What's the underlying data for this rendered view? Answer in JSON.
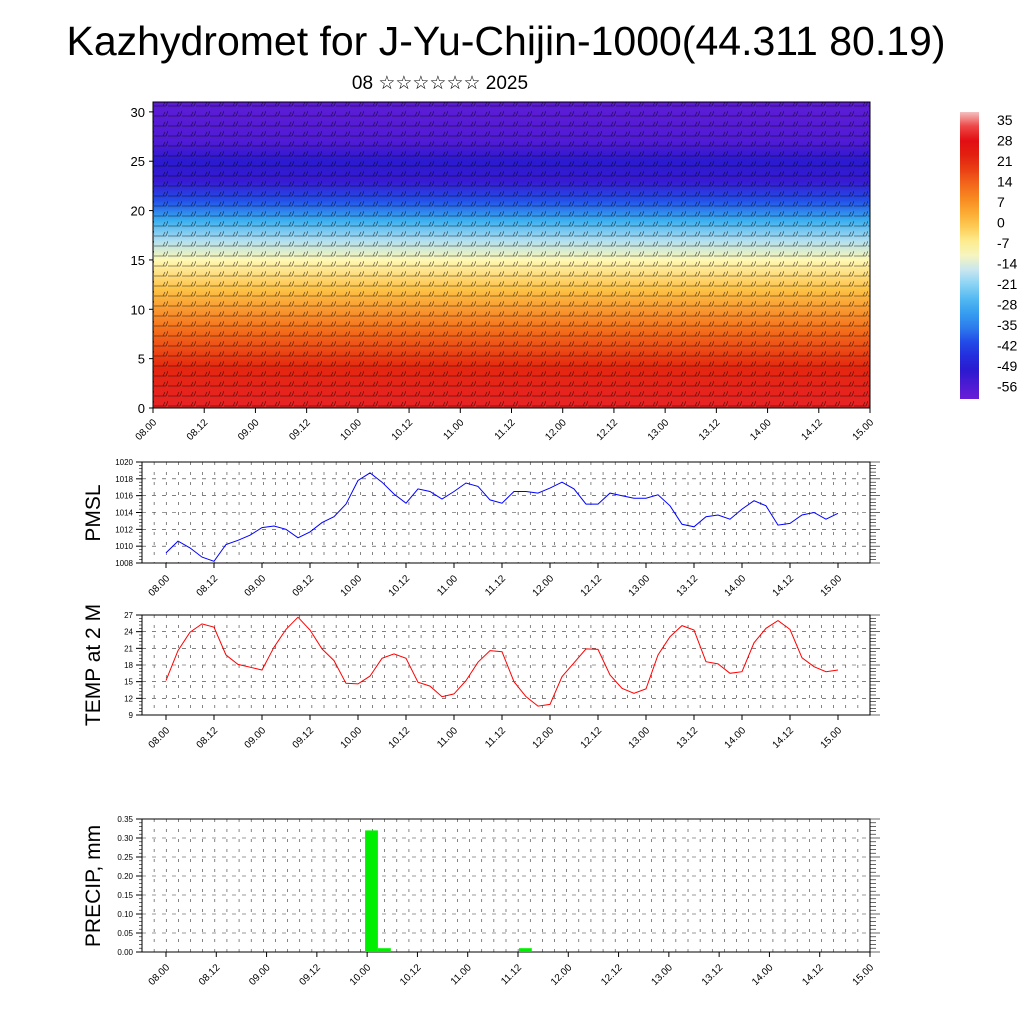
{
  "header": {
    "title": "Kazhydromet for J-Yu-Chijin-1000(44.311 80.19)",
    "date": "08 ☆☆☆☆☆☆ 2025"
  },
  "colors": {
    "pmsl_line": "#0000ff",
    "temp_line": "#ff0000",
    "precip_bar": "#00ee00",
    "background": "#ffffff"
  },
  "chart_data": [
    {
      "type": "heatmap",
      "title": "",
      "xlabel": "",
      "ylabel": "",
      "x_tick_labels": [
        "08.00",
        "08.12",
        "09.00",
        "09.12",
        "10.00",
        "10.12",
        "11.00",
        "11.12",
        "12.00",
        "12.12",
        "13.00",
        "13.12",
        "14.00",
        "14.12",
        "15.00"
      ],
      "y_ticks": [
        0,
        5,
        10,
        15,
        20,
        25,
        30
      ],
      "ylim": [
        0,
        31
      ],
      "overlay": "wind barbs",
      "temperature_profile": {
        "heights": [
          0,
          4,
          8,
          12,
          15,
          17,
          19,
          21,
          23,
          25,
          27,
          31
        ],
        "values": [
          30,
          22,
          12,
          0,
          -10,
          -18,
          -28,
          -40,
          -52,
          -50,
          -56,
          -58
        ]
      },
      "colorbar": {
        "labels": [
          "35",
          "28",
          "21",
          "14",
          "7",
          "0",
          "-7",
          "-14",
          "-21",
          "-28",
          "-35",
          "-42",
          "-49",
          "-56"
        ],
        "range": [
          -60,
          38
        ]
      }
    },
    {
      "type": "line",
      "ylabel": "PMSL",
      "x_tick_labels": [
        "08.00",
        "08.12",
        "09.00",
        "09.12",
        "10.00",
        "10.12",
        "11.00",
        "11.12",
        "12.00",
        "12.12",
        "13.00",
        "13.12",
        "14.00",
        "14.12",
        "15.00"
      ],
      "y_ticks": [
        "1008",
        "1010",
        "1012",
        "1014",
        "1016",
        "1018",
        "1020"
      ],
      "ylim": [
        1008,
        1020
      ],
      "grid": true,
      "series": [
        {
          "values": [
            1009.2,
            1010.6,
            1009.8,
            1008.7,
            1008.2,
            1010.2,
            1010.7,
            1011.3,
            1012.2,
            1012.4,
            1012.0,
            1011.0,
            1011.7,
            1012.8,
            1013.5,
            1015.0,
            1017.8,
            1018.7,
            1017.6,
            1016.2,
            1015.1,
            1016.8,
            1016.5,
            1015.6,
            1016.5,
            1017.5,
            1017.1,
            1015.5,
            1015.1,
            1016.5,
            1016.5,
            1016.3,
            1016.9,
            1017.6,
            1016.8,
            1015.0,
            1015.0,
            1016.3,
            1016.0,
            1015.7,
            1015.7,
            1016.1,
            1014.8,
            1012.6,
            1012.3,
            1013.5,
            1013.7,
            1013.2,
            1014.4,
            1015.4,
            1014.8,
            1012.5,
            1012.7,
            1013.7,
            1014.0,
            1013.2,
            1013.9
          ]
        }
      ]
    },
    {
      "type": "line",
      "ylabel": "TEMP at 2 M",
      "x_tick_labels": [
        "08.00",
        "08.12",
        "09.00",
        "09.12",
        "10.00",
        "10.12",
        "11.00",
        "11.12",
        "12.00",
        "12.12",
        "13.00",
        "13.12",
        "14.00",
        "14.12",
        "15.00"
      ],
      "y_ticks": [
        "9",
        "12",
        "15",
        "18",
        "21",
        "24",
        "27"
      ],
      "ylim": [
        9,
        27
      ],
      "grid": true,
      "series": [
        {
          "values": [
            15.2,
            20.6,
            23.9,
            25.4,
            24.8,
            19.8,
            18.1,
            17.6,
            17.1,
            21.2,
            24.4,
            26.6,
            24.3,
            20.9,
            18.8,
            14.7,
            14.6,
            16.0,
            19.2,
            20.0,
            19.2,
            14.9,
            14.2,
            12.3,
            12.8,
            15.2,
            18.5,
            20.6,
            20.4,
            15.0,
            12.3,
            10.6,
            10.9,
            15.9,
            18.4,
            20.9,
            20.8,
            16.2,
            13.8,
            12.9,
            13.7,
            19.8,
            23.1,
            25.1,
            24.3,
            18.6,
            18.2,
            16.5,
            16.8,
            22.0,
            24.6,
            26.0,
            24.4,
            19.3,
            17.7,
            16.8,
            17.1
          ]
        }
      ]
    },
    {
      "type": "bar",
      "ylabel": "PRECIP, mm",
      "x_tick_labels": [
        "08.00",
        "08.12",
        "09.00",
        "09.12",
        "10.00",
        "10.12",
        "11.00",
        "11.12",
        "12.00",
        "12.12",
        "13.00",
        "13.12",
        "14.00",
        "14.12",
        "15.00"
      ],
      "y_ticks": [
        "0.00",
        "0.05",
        "0.10",
        "0.15",
        "0.20",
        "0.25",
        "0.30",
        "0.35"
      ],
      "ylim": [
        0,
        0.35
      ],
      "grid": true,
      "values": [
        0,
        0,
        0,
        0,
        0,
        0,
        0,
        0,
        0,
        0,
        0,
        0,
        0,
        0,
        0,
        0,
        0.32,
        0.01,
        0,
        0,
        0,
        0,
        0,
        0,
        0,
        0,
        0,
        0,
        0.01,
        0,
        0,
        0,
        0,
        0,
        0,
        0,
        0,
        0,
        0,
        0,
        0,
        0,
        0,
        0,
        0,
        0,
        0,
        0,
        0,
        0,
        0,
        0,
        0,
        0,
        0,
        0
      ]
    }
  ]
}
